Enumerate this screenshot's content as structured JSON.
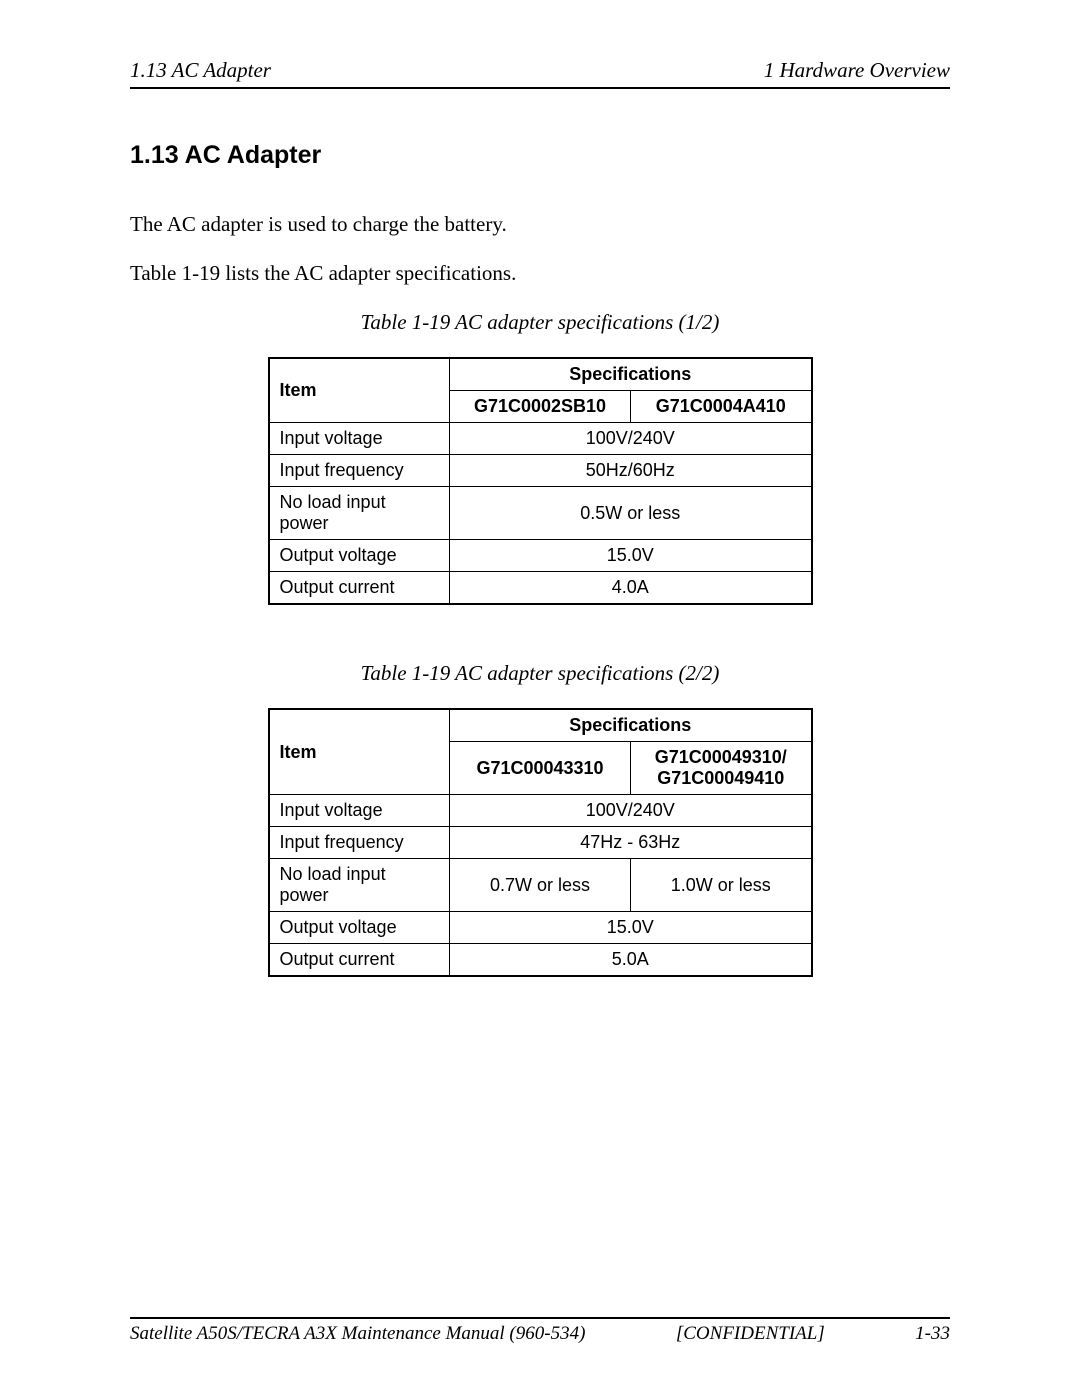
{
  "header": {
    "left": "1.13  AC Adapter",
    "right": "1  Hardware Overview"
  },
  "section": {
    "heading": "1.13  AC Adapter",
    "para1": "The AC adapter is used to charge the battery.",
    "para2": "Table 1-19 lists the AC adapter specifications."
  },
  "table1": {
    "caption": "Table 1-19  AC adapter specifications (1/2)",
    "header_item": "Item",
    "header_specs": "Specifications",
    "subhead_a": "G71C0002SB10",
    "subhead_b": "G71C0004A410",
    "rows": [
      {
        "item": "Input voltage",
        "merged": true,
        "val": "100V/240V"
      },
      {
        "item": "Input frequency",
        "merged": true,
        "val": "50Hz/60Hz"
      },
      {
        "item": "No load input power",
        "merged": true,
        "val": "0.5W or less"
      },
      {
        "item": "Output voltage",
        "merged": true,
        "val": "15.0V"
      },
      {
        "item": "Output current",
        "merged": true,
        "val": "4.0A"
      }
    ]
  },
  "table2": {
    "caption": "Table 1-19  AC adapter specifications (2/2)",
    "header_item": "Item",
    "header_specs": "Specifications",
    "subhead_a": "G71C00043310",
    "subhead_b": "G71C00049310/ G71C00049410",
    "rows": [
      {
        "item": "Input voltage",
        "merged": true,
        "val": "100V/240V"
      },
      {
        "item": "Input frequency",
        "merged": true,
        "val": "47Hz - 63Hz"
      },
      {
        "item": "No load input power",
        "merged": false,
        "val_a": "0.7W or less",
        "val_b": "1.0W or less"
      },
      {
        "item": "Output voltage",
        "merged": true,
        "val": "15.0V"
      },
      {
        "item": "Output current",
        "merged": true,
        "val": "5.0A"
      }
    ]
  },
  "footer": {
    "left": "Satellite A50S/TECRA A3X  Maintenance Manual (960-534)",
    "center": "[CONFIDENTIAL]",
    "right": "1-33"
  }
}
